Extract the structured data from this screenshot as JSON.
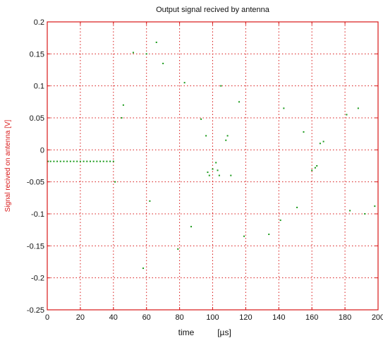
{
  "chart_data": {
    "type": "scatter",
    "title": "Output signal recived by antenna",
    "xlabel": "time",
    "xunit": "[µs]",
    "ylabel": "Signal recived on antenna [V]",
    "xlim": [
      0,
      200
    ],
    "ylim": [
      -0.25,
      0.2
    ],
    "xticks": [
      0,
      20,
      40,
      60,
      80,
      100,
      120,
      140,
      160,
      180,
      200
    ],
    "xtick_labels": [
      "0",
      "20",
      "40",
      "60",
      "80",
      "100",
      "120",
      "140",
      "160",
      "180",
      "200"
    ],
    "yticks": [
      0.2,
      0.15,
      0.1,
      0.05,
      0,
      -0.05,
      -0.1,
      -0.15,
      -0.2,
      -0.25
    ],
    "ytick_labels": [
      "0.2",
      "0.15",
      "0.1",
      "0.05",
      "0",
      "-0.05",
      "-0.1",
      "-0.15",
      "-0.2",
      "-0.25"
    ],
    "grid": true,
    "colors": {
      "series": "#1a9a1a",
      "axes": "#d81818",
      "grid": "#d81818"
    },
    "series": [
      {
        "points": [
          [
            0.5,
            -0.018
          ],
          [
            2,
            -0.018
          ],
          [
            4,
            -0.018
          ],
          [
            6,
            -0.018
          ],
          [
            8,
            -0.018
          ],
          [
            10,
            -0.018
          ],
          [
            12,
            -0.018
          ],
          [
            14,
            -0.018
          ],
          [
            16,
            -0.018
          ],
          [
            18,
            -0.018
          ],
          [
            20,
            -0.018
          ],
          [
            22,
            -0.018
          ],
          [
            24,
            -0.018
          ],
          [
            26,
            -0.018
          ],
          [
            28,
            -0.018
          ],
          [
            30,
            -0.018
          ],
          [
            32,
            -0.018
          ],
          [
            34,
            -0.018
          ],
          [
            36,
            -0.018
          ],
          [
            38,
            -0.018
          ],
          [
            40,
            -0.018
          ],
          [
            41,
            -0.05
          ],
          [
            45,
            0.05
          ],
          [
            46,
            0.07
          ],
          [
            52,
            0.152
          ],
          [
            58,
            -0.185
          ],
          [
            60,
            0.15
          ],
          [
            62,
            -0.08
          ],
          [
            66,
            0.168
          ],
          [
            70,
            0.135
          ],
          [
            79,
            -0.155
          ],
          [
            83,
            0.105
          ],
          [
            87,
            -0.12
          ],
          [
            93,
            0.048
          ],
          [
            96,
            0.022
          ],
          [
            97,
            -0.035
          ],
          [
            98,
            -0.04
          ],
          [
            100,
            -0.03
          ],
          [
            102,
            -0.02
          ],
          [
            103,
            -0.032
          ],
          [
            104,
            -0.04
          ],
          [
            105,
            0.1
          ],
          [
            108,
            0.015
          ],
          [
            109,
            0.022
          ],
          [
            111,
            -0.04
          ],
          [
            116,
            0.075
          ],
          [
            119,
            -0.135
          ],
          [
            134,
            -0.132
          ],
          [
            141,
            -0.11
          ],
          [
            143,
            0.065
          ],
          [
            151,
            -0.09
          ],
          [
            155,
            0.028
          ],
          [
            160,
            -0.032
          ],
          [
            162,
            -0.028
          ],
          [
            163,
            -0.025
          ],
          [
            165,
            0.01
          ],
          [
            167,
            0.013
          ],
          [
            181,
            0.055
          ],
          [
            183,
            -0.095
          ],
          [
            188,
            0.065
          ],
          [
            192,
            -0.1
          ],
          [
            198,
            -0.088
          ]
        ]
      }
    ]
  }
}
